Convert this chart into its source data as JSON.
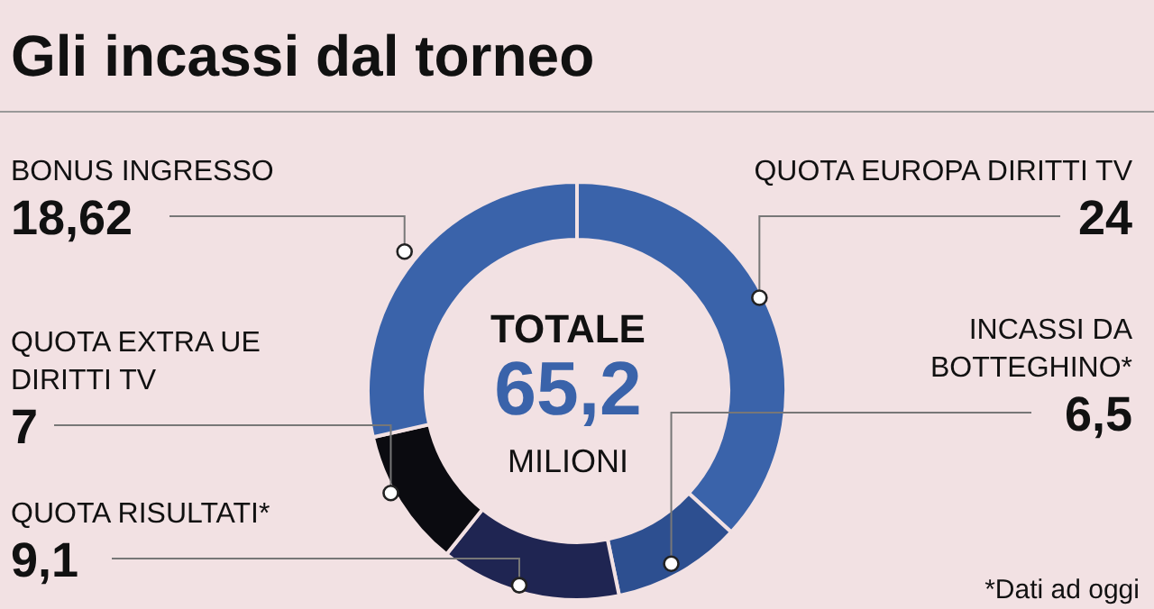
{
  "chart_data": {
    "type": "donut",
    "title": "Gli incassi dal torneo",
    "categories": [
      "QUOTA EUROPA DIRITTI TV",
      "INCASSI DA BOTTEGHINO*",
      "QUOTA RISULTATI*",
      "QUOTA EXTRA UE DIRITTI TV",
      "BONUS INGRESSO"
    ],
    "values": [
      24,
      6.5,
      9.1,
      7,
      18.62
    ],
    "value_labels": [
      "24",
      "6,5",
      "9,1",
      "7",
      "18,62"
    ],
    "colors": [
      "#3a63aa",
      "#2d4f90",
      "#1f2552",
      "#0b0b10",
      "#3a63aa"
    ],
    "annotations": [
      "TOTALE",
      "65,2",
      "MILIONI",
      "*Dati ad oggi"
    ]
  }
}
